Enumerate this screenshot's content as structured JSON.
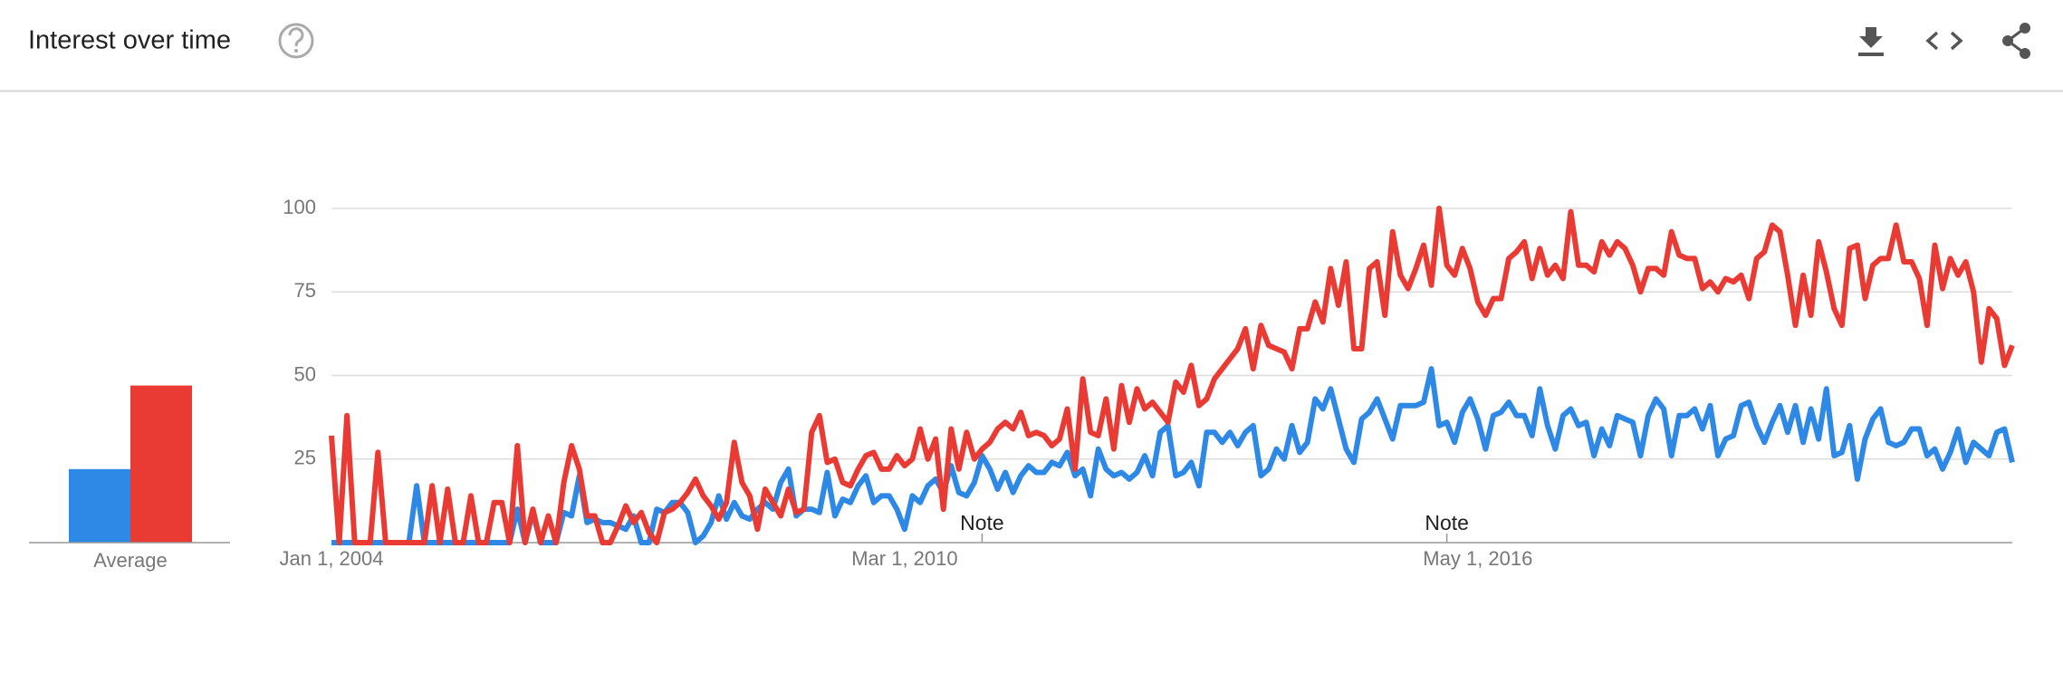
{
  "chart_data": {
    "type": "line",
    "title": "Interest over time",
    "average_label": "Average",
    "categories": [
      "Jan 1, 2004",
      null,
      null,
      null,
      null,
      null,
      null,
      null,
      null,
      null,
      null,
      null,
      null,
      null,
      null,
      null,
      null,
      null,
      null,
      null,
      null,
      null,
      null,
      null,
      null,
      null,
      null,
      null,
      null,
      null,
      null,
      null,
      null,
      null,
      null,
      null,
      null,
      null,
      null,
      null,
      null,
      null,
      null,
      null,
      null,
      null,
      null,
      null,
      null,
      null,
      null,
      null,
      null,
      null,
      null,
      null,
      null,
      null,
      null,
      null,
      null,
      null,
      null,
      null,
      null,
      null,
      null,
      null,
      null,
      null,
      null,
      null,
      null,
      null,
      "Mar 1, 2010",
      null,
      null,
      null,
      null,
      null,
      null,
      null,
      null,
      null,
      null,
      null,
      null,
      null,
      null,
      null,
      null,
      null,
      null,
      null,
      null,
      null,
      null,
      null,
      null,
      null,
      null,
      null,
      null,
      null,
      null,
      null,
      null,
      null,
      null,
      null,
      null,
      null,
      null,
      null,
      null,
      null,
      null,
      null,
      null,
      null,
      null,
      null,
      null,
      null,
      null,
      null,
      null,
      null,
      null,
      null,
      null,
      null,
      null,
      null,
      null,
      null,
      null,
      null,
      null,
      null,
      null,
      null,
      null,
      null,
      null,
      null,
      null,
      null,
      "May 1, 2016",
      null,
      null,
      null,
      null,
      null,
      null,
      null,
      null,
      null,
      null,
      null,
      null,
      null,
      null,
      null,
      null,
      null,
      null,
      null,
      null,
      null,
      null,
      null,
      null,
      null,
      null,
      null,
      null,
      null,
      null,
      null,
      null,
      null,
      null,
      null,
      null,
      null,
      null,
      null,
      null,
      null,
      null,
      null,
      null,
      null,
      null,
      null,
      null,
      null,
      null,
      null,
      null,
      null,
      null,
      null,
      null,
      null,
      null,
      null,
      null,
      null,
      null,
      null,
      null,
      null,
      null,
      null,
      null,
      null
    ],
    "series": [
      {
        "color": "#2d88e6",
        "average": 22,
        "values": [
          0,
          0,
          0,
          0,
          0,
          0,
          0,
          0,
          0,
          0,
          0,
          17,
          0,
          0,
          0,
          0,
          0,
          0,
          0,
          0,
          0,
          0,
          0,
          0,
          10,
          0,
          9,
          0,
          0,
          0,
          9,
          8,
          20,
          6,
          7,
          6,
          6,
          5,
          4,
          8,
          0,
          0,
          10,
          9,
          12,
          12,
          9,
          0,
          2,
          6,
          14,
          7,
          12,
          8,
          7,
          10,
          12,
          10,
          18,
          22,
          8,
          10,
          10,
          9,
          21,
          8,
          13,
          12,
          17,
          20,
          12,
          14,
          14,
          10,
          4,
          14,
          12,
          17,
          19,
          15,
          23,
          15,
          14,
          18,
          26,
          22,
          16,
          21,
          15,
          20,
          23,
          21,
          21,
          24,
          23,
          27,
          20,
          22,
          14,
          28,
          22,
          20,
          21,
          19,
          21,
          26,
          20,
          33,
          35,
          20,
          21,
          24,
          17,
          33,
          33,
          30,
          33,
          29,
          33,
          35,
          20,
          22,
          28,
          25,
          35,
          27,
          30,
          43,
          40,
          46,
          37,
          28,
          24,
          37,
          39,
          43,
          37,
          31,
          41,
          41,
          41,
          42,
          52,
          35,
          36,
          30,
          39,
          43,
          37,
          28,
          38,
          39,
          42,
          38,
          38,
          32,
          46,
          35,
          28,
          38,
          40,
          35,
          36,
          26,
          34,
          29,
          38,
          37,
          36,
          26,
          38,
          43,
          40,
          26,
          38,
          38,
          40,
          34,
          41,
          26,
          31,
          32,
          41,
          42,
          35,
          30,
          36,
          41,
          33,
          41,
          30,
          40,
          31,
          46,
          26,
          27,
          35,
          19,
          31,
          37,
          40,
          30,
          29,
          30,
          34,
          34,
          26,
          28,
          22,
          27,
          34,
          24,
          30,
          28,
          26,
          33,
          34,
          24
        ]
      },
      {
        "color": "#ea3a34",
        "average": 47,
        "values": [
          32,
          0,
          38,
          0,
          0,
          0,
          27,
          0,
          0,
          0,
          0,
          0,
          0,
          17,
          0,
          16,
          0,
          0,
          14,
          0,
          0,
          12,
          12,
          0,
          29,
          0,
          10,
          0,
          8,
          0,
          18,
          29,
          22,
          8,
          8,
          0,
          0,
          5,
          11,
          6,
          9,
          3,
          0,
          9,
          10,
          12,
          15,
          19,
          14,
          11,
          7,
          12,
          30,
          18,
          14,
          4,
          16,
          12,
          8,
          16,
          9,
          10,
          33,
          38,
          24,
          25,
          18,
          17,
          22,
          26,
          27,
          22,
          22,
          26,
          23,
          25,
          34,
          25,
          31,
          10,
          34,
          22,
          33,
          25,
          28,
          30,
          34,
          36,
          34,
          39,
          32,
          33,
          32,
          29,
          31,
          40,
          22,
          49,
          33,
          32,
          43,
          28,
          47,
          36,
          46,
          40,
          42,
          39,
          36,
          48,
          45,
          53,
          41,
          43,
          49,
          52,
          55,
          58,
          64,
          52,
          65,
          59,
          58,
          57,
          52,
          64,
          64,
          72,
          66,
          82,
          71,
          84,
          58,
          58,
          82,
          84,
          68,
          93,
          80,
          76,
          82,
          89,
          77,
          100,
          83,
          80,
          88,
          82,
          72,
          68,
          73,
          73,
          85,
          87,
          90,
          79,
          88,
          80,
          83,
          79,
          99,
          83,
          83,
          81,
          90,
          86,
          90,
          88,
          83,
          75,
          82,
          82,
          80,
          93,
          86,
          85,
          85,
          76,
          78,
          75,
          79,
          78,
          80,
          73,
          85,
          87,
          95,
          93,
          80,
          65,
          80,
          68,
          90,
          81,
          70,
          65,
          88,
          89,
          73,
          83,
          85,
          85,
          95,
          84,
          84,
          79,
          65,
          89,
          76,
          85,
          80,
          84,
          75,
          54,
          70,
          67,
          53,
          59
        ]
      }
    ],
    "annotations": [
      {
        "text": "Note",
        "index": 84
      },
      {
        "text": "Note",
        "index": 144
      }
    ],
    "ylim": [
      0,
      100
    ],
    "yticks": [
      25,
      50,
      75,
      100
    ],
    "grid": true
  }
}
